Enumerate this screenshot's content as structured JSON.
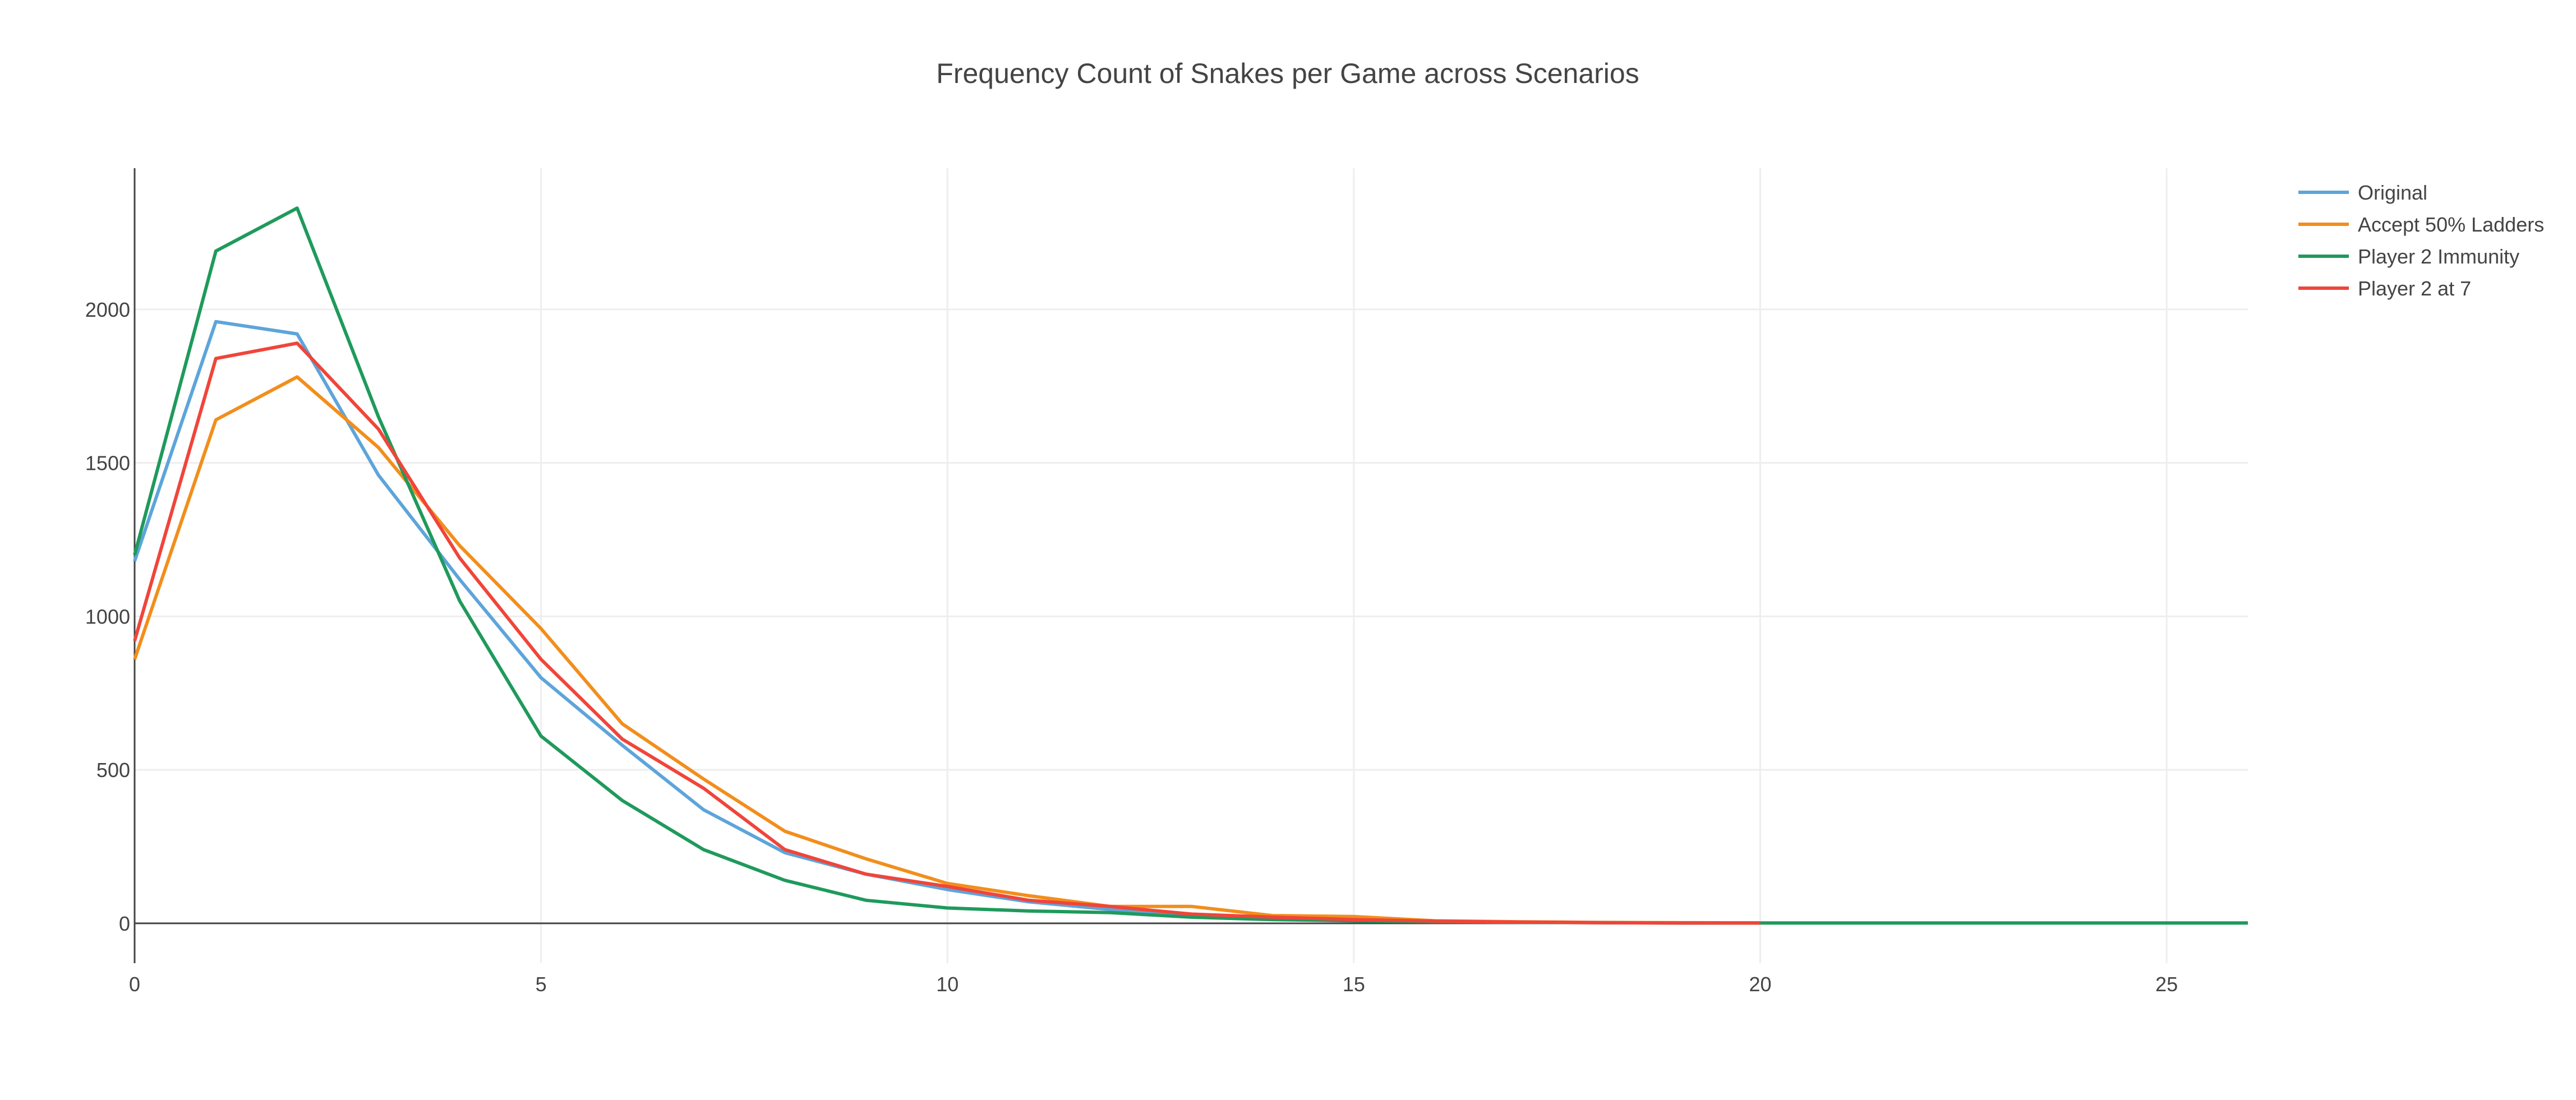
{
  "chart_data": {
    "type": "line",
    "title": "Frequency Count of Snakes per Game across Scenarios",
    "xlabel": "",
    "ylabel": "",
    "xlim": [
      0,
      26
    ],
    "ylim": [
      -130,
      2460
    ],
    "x_ticks": [
      0,
      5,
      10,
      15,
      20,
      25
    ],
    "y_ticks": [
      0,
      500,
      1000,
      1500,
      2000
    ],
    "grid": true,
    "legend_position": "top-right",
    "series": [
      {
        "name": "Original",
        "color": "#5da5da",
        "x": [
          0,
          1,
          2,
          3,
          4,
          5,
          6,
          7,
          8,
          9,
          10,
          11,
          12,
          13,
          14,
          15,
          16,
          17,
          18,
          19,
          20
        ],
        "y": [
          1180,
          1960,
          1920,
          1460,
          1120,
          800,
          580,
          370,
          230,
          160,
          110,
          70,
          45,
          30,
          15,
          10,
          6,
          3,
          2,
          1,
          1
        ]
      },
      {
        "name": "Accept 50% Ladders",
        "color": "#f28e1c",
        "x": [
          0,
          1,
          2,
          3,
          4,
          5,
          6,
          7,
          8,
          9,
          10,
          11,
          12,
          13,
          14,
          15,
          16,
          17,
          18,
          19,
          20
        ],
        "y": [
          860,
          1640,
          1780,
          1550,
          1230,
          960,
          650,
          470,
          300,
          210,
          130,
          90,
          55,
          55,
          25,
          22,
          8,
          5,
          3,
          2,
          1
        ]
      },
      {
        "name": "Player 2 Immunity",
        "color": "#1f9a5c",
        "x": [
          0,
          1,
          2,
          3,
          4,
          5,
          6,
          7,
          8,
          9,
          10,
          11,
          12,
          13,
          14,
          15,
          16,
          17,
          18,
          19,
          20,
          21,
          22,
          23,
          24,
          25,
          26
        ],
        "y": [
          1200,
          2190,
          2330,
          1650,
          1050,
          610,
          400,
          240,
          140,
          75,
          50,
          40,
          35,
          20,
          12,
          8,
          5,
          3,
          2,
          1,
          1,
          1,
          1,
          1,
          1,
          1,
          1
        ]
      },
      {
        "name": "Player 2 at 7",
        "color": "#f0453a",
        "x": [
          0,
          1,
          2,
          3,
          4,
          5,
          6,
          7,
          8,
          9,
          10,
          11,
          12,
          13,
          14,
          15,
          16,
          17,
          18,
          19,
          20
        ],
        "y": [
          920,
          1840,
          1890,
          1610,
          1190,
          860,
          600,
          440,
          240,
          160,
          120,
          75,
          55,
          30,
          20,
          12,
          7,
          4,
          2,
          1,
          1
        ]
      }
    ]
  }
}
